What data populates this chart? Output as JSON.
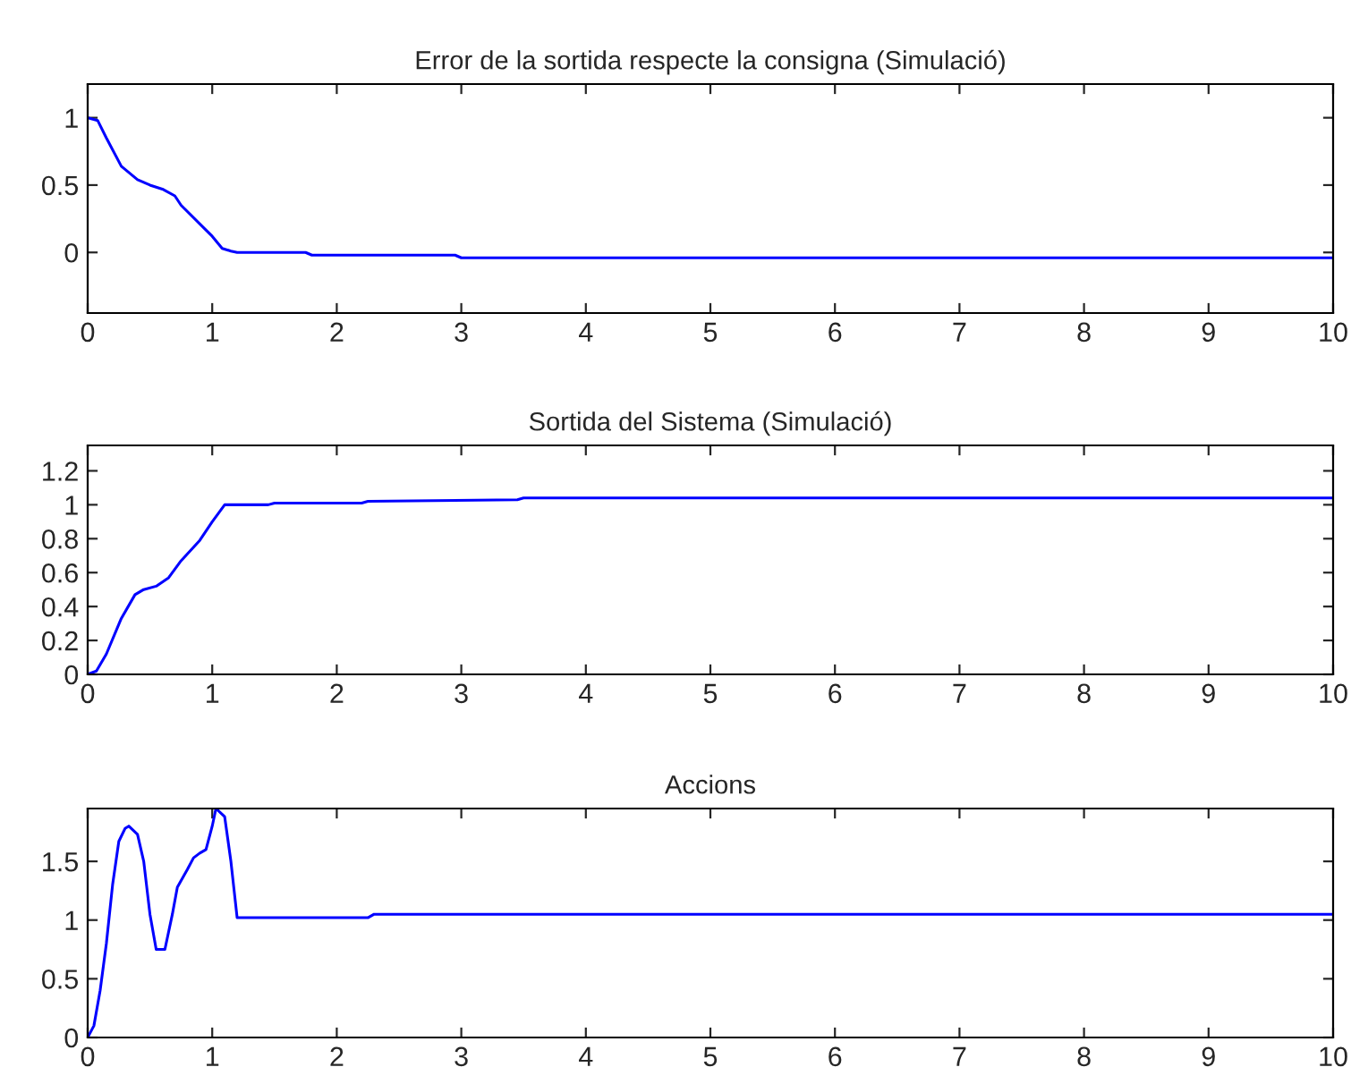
{
  "chart_data": [
    {
      "type": "line",
      "title": "Error de la sortida respecte la consigna (Simulació)",
      "xlim": [
        0,
        10
      ],
      "xticks": [
        0,
        1,
        2,
        3,
        4,
        5,
        6,
        7,
        8,
        9,
        10
      ],
      "ylim": [
        -0.45,
        1.25
      ],
      "yticks": [
        0,
        0.5,
        1
      ],
      "grid": false,
      "series": [
        {
          "color": "#0000ff",
          "x": [
            0,
            0.08,
            0.15,
            0.27,
            0.4,
            0.5,
            0.6,
            0.7,
            0.75,
            1.0,
            1.08,
            1.15,
            1.2,
            1.75,
            1.8,
            2.95,
            3.0,
            10
          ],
          "values": [
            1,
            0.98,
            0.85,
            0.64,
            0.54,
            0.5,
            0.47,
            0.42,
            0.35,
            0.12,
            0.03,
            0.01,
            0,
            0,
            -0.02,
            -0.02,
            -0.04,
            -0.04
          ]
        }
      ]
    },
    {
      "type": "line",
      "title": "Sortida del Sistema (Simulació)",
      "xlim": [
        0,
        10
      ],
      "xticks": [
        0,
        1,
        2,
        3,
        4,
        5,
        6,
        7,
        8,
        9,
        10
      ],
      "ylim": [
        0,
        1.35
      ],
      "yticks": [
        0,
        0.2,
        0.4,
        0.6,
        0.8,
        1,
        1.2
      ],
      "grid": false,
      "series": [
        {
          "color": "#0000ff",
          "x": [
            0,
            0.07,
            0.15,
            0.27,
            0.38,
            0.45,
            0.55,
            0.65,
            0.75,
            0.9,
            1.0,
            1.1,
            1.45,
            1.5,
            2.2,
            2.25,
            3.45,
            3.5,
            10
          ],
          "values": [
            0,
            0.02,
            0.12,
            0.33,
            0.47,
            0.5,
            0.52,
            0.57,
            0.67,
            0.79,
            0.9,
            1.0,
            1.0,
            1.01,
            1.01,
            1.02,
            1.03,
            1.04,
            1.04
          ]
        }
      ]
    },
    {
      "type": "line",
      "title": "Accions",
      "xlim": [
        0,
        10
      ],
      "xticks": [
        0,
        1,
        2,
        3,
        4,
        5,
        6,
        7,
        8,
        9,
        10
      ],
      "ylim": [
        0,
        1.95
      ],
      "yticks": [
        0,
        0.5,
        1,
        1.5
      ],
      "grid": false,
      "series": [
        {
          "color": "#0000ff",
          "x": [
            0,
            0.05,
            0.1,
            0.15,
            0.2,
            0.25,
            0.3,
            0.33,
            0.4,
            0.45,
            0.5,
            0.55,
            0.62,
            0.68,
            0.72,
            0.8,
            0.85,
            0.9,
            0.95,
            1.0,
            1.03,
            1.1,
            1.15,
            1.2,
            2.25,
            2.3,
            10
          ],
          "values": [
            0,
            0.1,
            0.4,
            0.8,
            1.3,
            1.67,
            1.78,
            1.8,
            1.73,
            1.5,
            1.05,
            0.75,
            0.75,
            1.05,
            1.28,
            1.43,
            1.53,
            1.57,
            1.6,
            1.8,
            1.95,
            1.88,
            1.5,
            1.02,
            1.02,
            1.05,
            1.05
          ]
        }
      ]
    }
  ]
}
